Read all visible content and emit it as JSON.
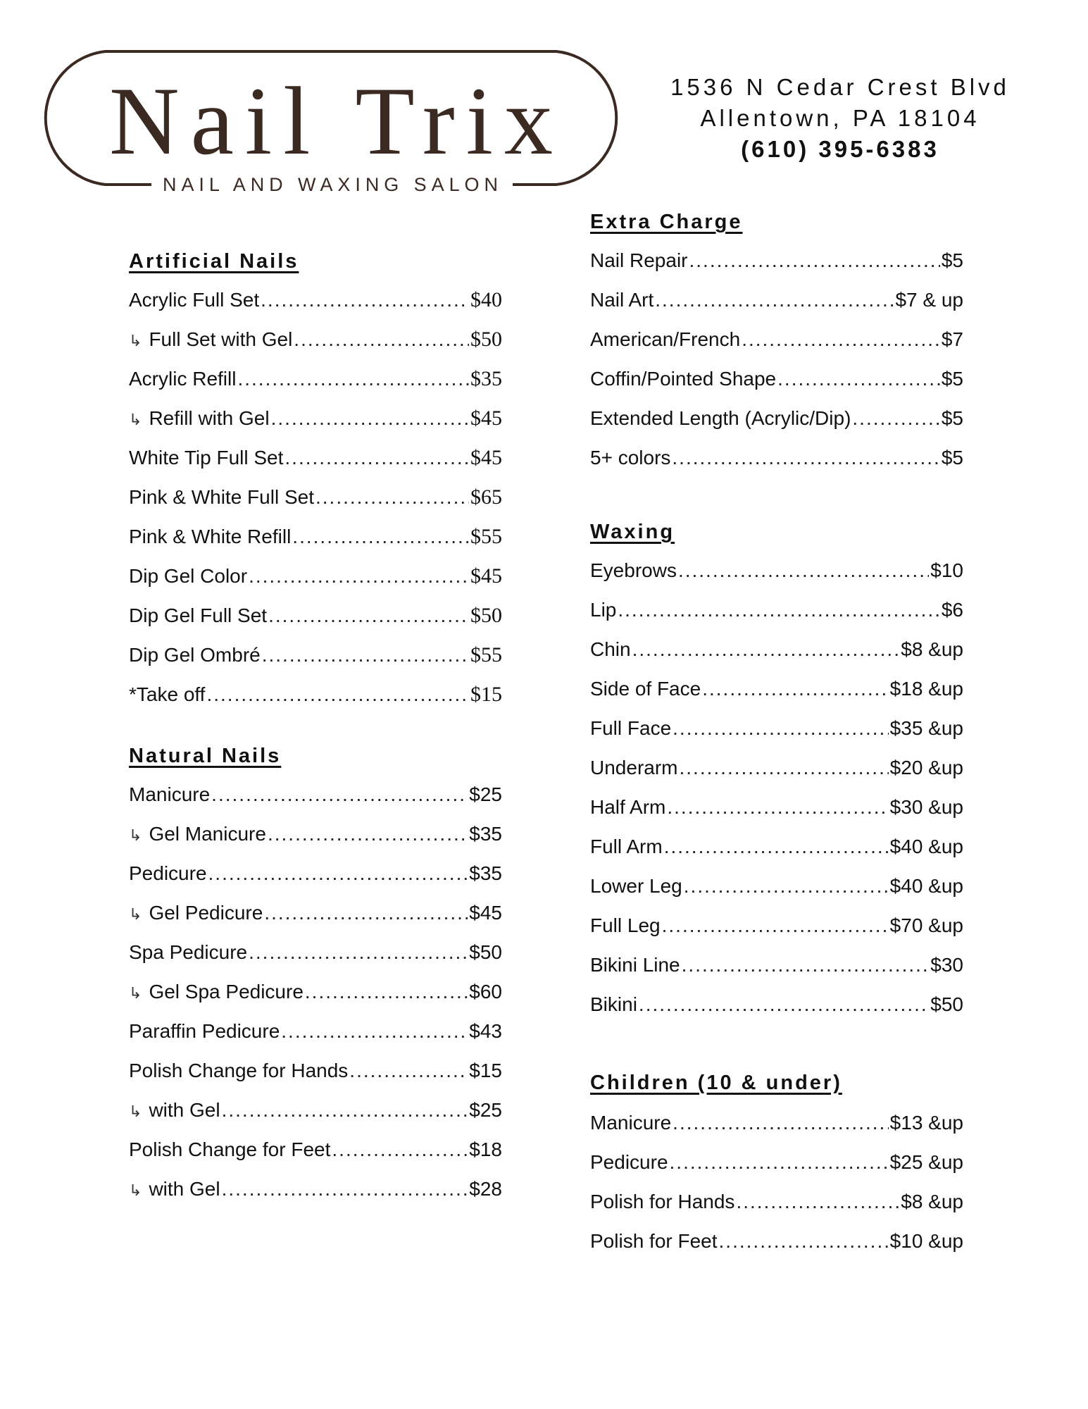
{
  "brand": {
    "name": "Nail Trix",
    "tagline": "NAIL AND WAXING SALON",
    "color": "#3b2a22"
  },
  "contact": {
    "address_line1": "1536 N Cedar Crest Blvd",
    "address_line2": "Allentown, PA 18104",
    "phone": "(610) 395-6383"
  },
  "sections": [
    {
      "id": "artificial-nails",
      "title": "Artificial Nails",
      "column": "left",
      "items": [
        {
          "label": "Acrylic Full Set",
          "price": "$40",
          "sub": false
        },
        {
          "label": "Full Set with Gel",
          "price": "$50",
          "sub": true
        },
        {
          "label": "Acrylic Refill",
          "price": "$35",
          "sub": false
        },
        {
          "label": "Refill with Gel",
          "price": "$45",
          "sub": true
        },
        {
          "label": "White Tip Full Set",
          "price": "$45",
          "sub": false
        },
        {
          "label": "Pink & White Full Set",
          "price": "$65",
          "sub": false
        },
        {
          "label": "Pink & White Refill",
          "price": "$55",
          "sub": false
        },
        {
          "label": "Dip Gel Color",
          "price": "$45",
          "sub": false
        },
        {
          "label": "Dip Gel Full Set",
          "price": "$50",
          "sub": false
        },
        {
          "label": "Dip Gel Ombré",
          "price": "$55",
          "sub": false
        },
        {
          "label": "*Take off",
          "price": "$15",
          "sub": false
        }
      ]
    },
    {
      "id": "natural-nails",
      "title": "Natural Nails",
      "column": "left",
      "items": [
        {
          "label": "Manicure",
          "price": "$25",
          "sub": false
        },
        {
          "label": "Gel Manicure",
          "price": "$35",
          "sub": true
        },
        {
          "label": "Pedicure",
          "price": "$35",
          "sub": false
        },
        {
          "label": "Gel Pedicure",
          "price": "$45",
          "sub": true
        },
        {
          "label": "Spa Pedicure",
          "price": "$50",
          "sub": false
        },
        {
          "label": "Gel Spa Pedicure",
          "price": "$60",
          "sub": true
        },
        {
          "label": "Paraffin Pedicure",
          "price": "$43",
          "sub": false
        },
        {
          "label": "Polish Change for Hands",
          "price": "$15",
          "sub": false
        },
        {
          "label": "with Gel",
          "price": "$25",
          "sub": true
        },
        {
          "label": "Polish Change for Feet",
          "price": "$18",
          "sub": false
        },
        {
          "label": "with Gel",
          "price": "$28",
          "sub": true
        }
      ]
    },
    {
      "id": "extra-charge",
      "title": "Extra Charge",
      "column": "right",
      "items": [
        {
          "label": "Nail Repair",
          "price": "$5",
          "sub": false
        },
        {
          "label": "Nail Art",
          "price": "$7 & up",
          "sub": false
        },
        {
          "label": "American/French",
          "price": "$7",
          "sub": false
        },
        {
          "label": "Coffin/Pointed Shape",
          "price": "$5",
          "sub": false
        },
        {
          "label": "Extended Length (Acrylic/Dip)",
          "price": "$5",
          "sub": false
        },
        {
          "label": "5+ colors",
          "price": "$5",
          "sub": false
        }
      ]
    },
    {
      "id": "waxing",
      "title": "Waxing",
      "column": "right",
      "items": [
        {
          "label": "Eyebrows",
          "price": "$10",
          "sub": false
        },
        {
          "label": "Lip",
          "price": "$6",
          "sub": false
        },
        {
          "label": "Chin",
          "price": "$8 &up",
          "sub": false
        },
        {
          "label": "Side of Face",
          "price": "$18 &up",
          "sub": false
        },
        {
          "label": "Full Face",
          "price": "$35 &up",
          "sub": false
        },
        {
          "label": "Underarm",
          "price": "$20 &up",
          "sub": false
        },
        {
          "label": "Half Arm",
          "price": "$30 &up",
          "sub": false
        },
        {
          "label": "Full Arm",
          "price": "$40 &up",
          "sub": false
        },
        {
          "label": "Lower Leg",
          "price": "$40 &up",
          "sub": false
        },
        {
          "label": "Full Leg",
          "price": "$70 &up",
          "sub": false
        },
        {
          "label": "Bikini Line",
          "price": "$30",
          "sub": false
        },
        {
          "label": "Bikini",
          "price": "$50",
          "sub": false
        }
      ]
    },
    {
      "id": "children",
      "title": "Children (10 & under)",
      "column": "right",
      "items": [
        {
          "label": "Manicure",
          "price": "$13 &up",
          "sub": false
        },
        {
          "label": "Pedicure",
          "price": "$25 &up",
          "sub": false
        },
        {
          "label": "Polish for Hands",
          "price": "$8 &up",
          "sub": false
        },
        {
          "label": "Polish for Feet",
          "price": "$10 &up",
          "sub": false
        }
      ]
    }
  ],
  "icons": {
    "sub_item": "arrow-down-right-icon"
  }
}
